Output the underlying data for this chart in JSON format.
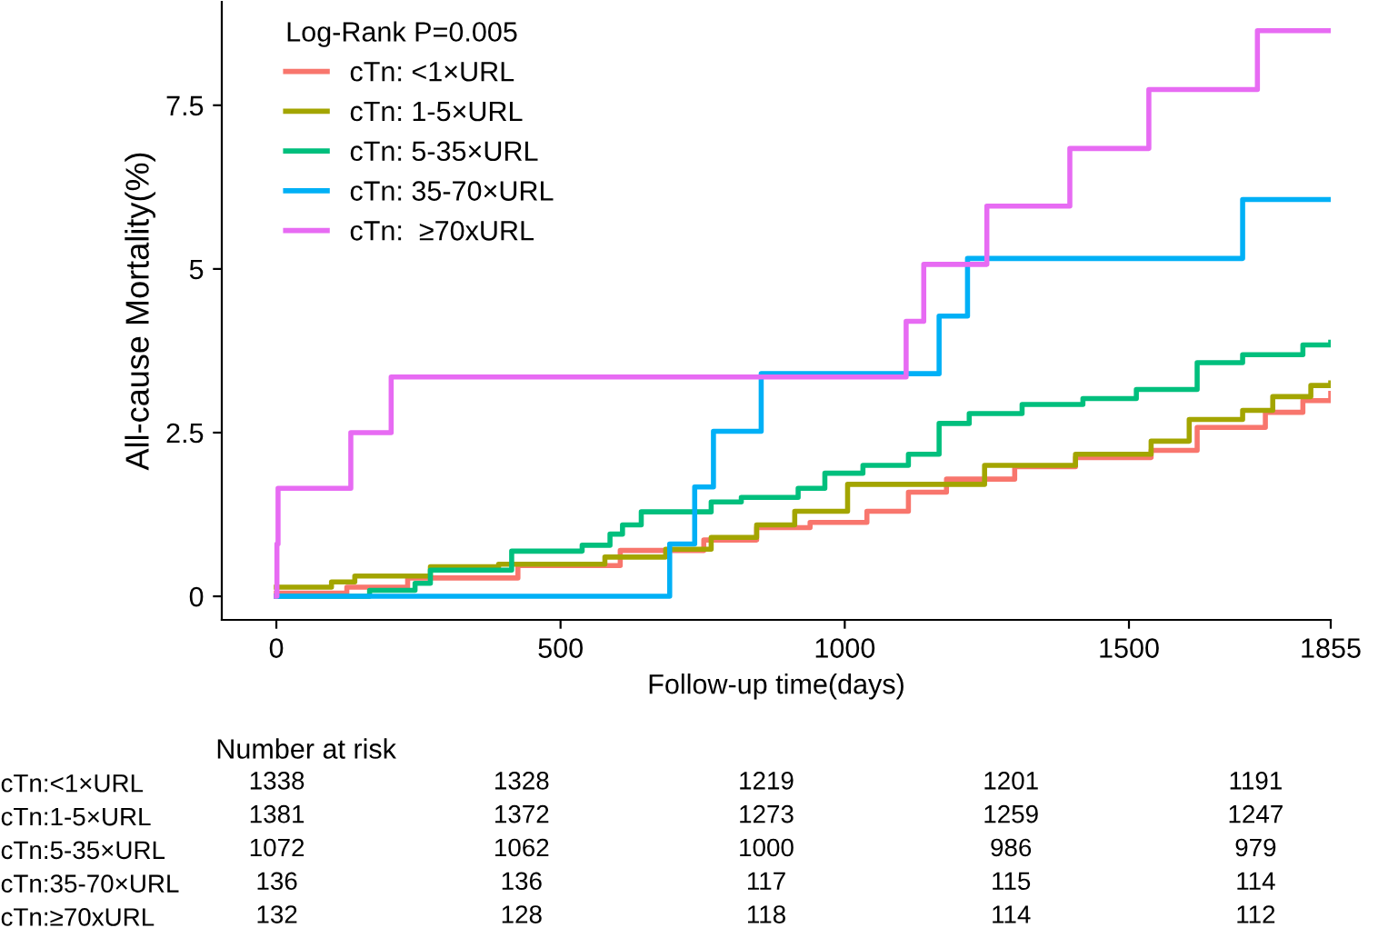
{
  "chart_data": [
    {
      "type": "step",
      "xlabel": "Follow-up time(days)",
      "ylabel": "All-cause Mortality(%)",
      "legend_title": "Log-Rank P=0.005",
      "legend": "top left",
      "grid": false,
      "xlim": [
        -96,
        1855
      ],
      "xticks": [
        0,
        500,
        1000,
        1500,
        1855
      ],
      "ylim": [
        -0.36,
        9.08
      ],
      "yticks": [
        0,
        2.5,
        5,
        7.5
      ],
      "series": [
        {
          "name": "cTn: <1×URL",
          "color": "#f8766d",
          "x": [
            0,
            124,
            231,
            425,
            605,
            752,
            845,
            939,
            1039,
            1112,
            1179,
            1299,
            1406,
            1539,
            1620,
            1740,
            1806,
            1855
          ],
          "values": [
            0.05,
            0.14,
            0.28,
            0.47,
            0.7,
            0.86,
            1.05,
            1.13,
            1.3,
            1.59,
            1.79,
            1.98,
            2.12,
            2.23,
            2.58,
            2.81,
            2.99,
            3.1
          ]
        },
        {
          "name": "cTn: 1-5×URL",
          "color": "#a3a500",
          "x": [
            0,
            97,
            138,
            271,
            391,
            578,
            685,
            765,
            845,
            912,
            1005,
            1246,
            1406,
            1539,
            1606,
            1700,
            1753,
            1820,
            1855
          ],
          "values": [
            0.14,
            0.22,
            0.31,
            0.45,
            0.49,
            0.6,
            0.72,
            0.9,
            1.09,
            1.3,
            1.71,
            2.0,
            2.17,
            2.37,
            2.7,
            2.84,
            3.05,
            3.22,
            3.26
          ]
        },
        {
          "name": "cTn: 5-35×URL",
          "color": "#00bf7d",
          "x": [
            0,
            164,
            244,
            271,
            414,
            538,
            587,
            609,
            642,
            765,
            818,
            918,
            965,
            1032,
            1112,
            1166,
            1219,
            1312,
            1419,
            1513,
            1620,
            1700,
            1806,
            1855
          ],
          "values": [
            0,
            0.09,
            0.2,
            0.4,
            0.69,
            0.78,
            0.95,
            1.09,
            1.29,
            1.44,
            1.51,
            1.65,
            1.88,
            2.0,
            2.17,
            2.64,
            2.79,
            2.93,
            3.02,
            3.16,
            3.57,
            3.69,
            3.84,
            3.88
          ]
        },
        {
          "name": "cTn: 35-70×URL",
          "color": "#00b0f6",
          "x": [
            0,
            692,
            736,
            769,
            853,
            1166,
            1216,
            1700,
            1855
          ],
          "values": [
            0,
            0.8,
            1.67,
            2.52,
            3.4,
            4.28,
            5.16,
            6.06,
            6.06
          ]
        },
        {
          "name": "cTn:  ≥70xURL",
          "color": "#e76bf3",
          "x": [
            0,
            1,
            3,
            131,
            202,
            1108,
            1139,
            1250,
            1396,
            1535,
            1726,
            1855
          ],
          "values": [
            0,
            0.8,
            1.65,
            2.5,
            3.35,
            4.2,
            5.07,
            5.96,
            6.84,
            7.74,
            8.64,
            8.64
          ]
        }
      ]
    },
    {
      "type": "heatmap",
      "title": "Number at risk",
      "data_labels": true,
      "categories": [
        null,
        null,
        null,
        null,
        null
      ],
      "y_categories": [
        "cTn:<1×URL",
        "cTn:1-5×URL",
        "cTn:5-35×URL",
        "cTn:35-70×URL",
        "cTn:≥70xURL"
      ],
      "cells": [
        [
          1338,
          1328,
          1219,
          1201,
          1191
        ],
        [
          1381,
          1372,
          1273,
          1259,
          1247
        ],
        [
          1072,
          1062,
          1000,
          986,
          979
        ],
        [
          136,
          136,
          117,
          115,
          114
        ],
        [
          132,
          128,
          118,
          114,
          112
        ]
      ]
    }
  ]
}
